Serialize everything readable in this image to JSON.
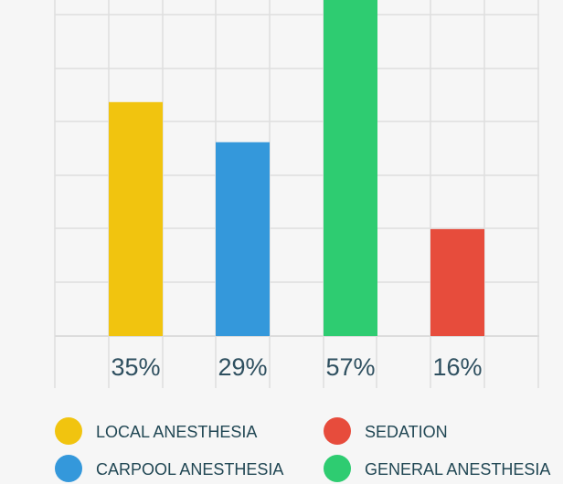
{
  "chart_data": {
    "type": "bar",
    "categories": [
      "LOCAL ANESTHESIA",
      "CARPOOL ANESTHESIA",
      "GENERAL ANESTHESIA",
      "SEDATION"
    ],
    "values": [
      35,
      29,
      57,
      16
    ],
    "value_labels": [
      "35%",
      "29%",
      "57%",
      "16%"
    ],
    "colors": [
      "#f1c40f",
      "#3498db",
      "#2ecc71",
      "#e74c3c"
    ],
    "ylim": [
      0,
      60
    ],
    "grid": true,
    "legend": {
      "placement": "bottom",
      "items": [
        {
          "label": "LOCAL ANESTHESIA",
          "color": "#f1c40f"
        },
        {
          "label": "SEDATION",
          "color": "#e74c3c"
        },
        {
          "label": "CARPOOL ANESTHESIA",
          "color": "#3498db"
        },
        {
          "label": "GENERAL ANESTHESIA",
          "color": "#2ecc71"
        }
      ]
    }
  }
}
